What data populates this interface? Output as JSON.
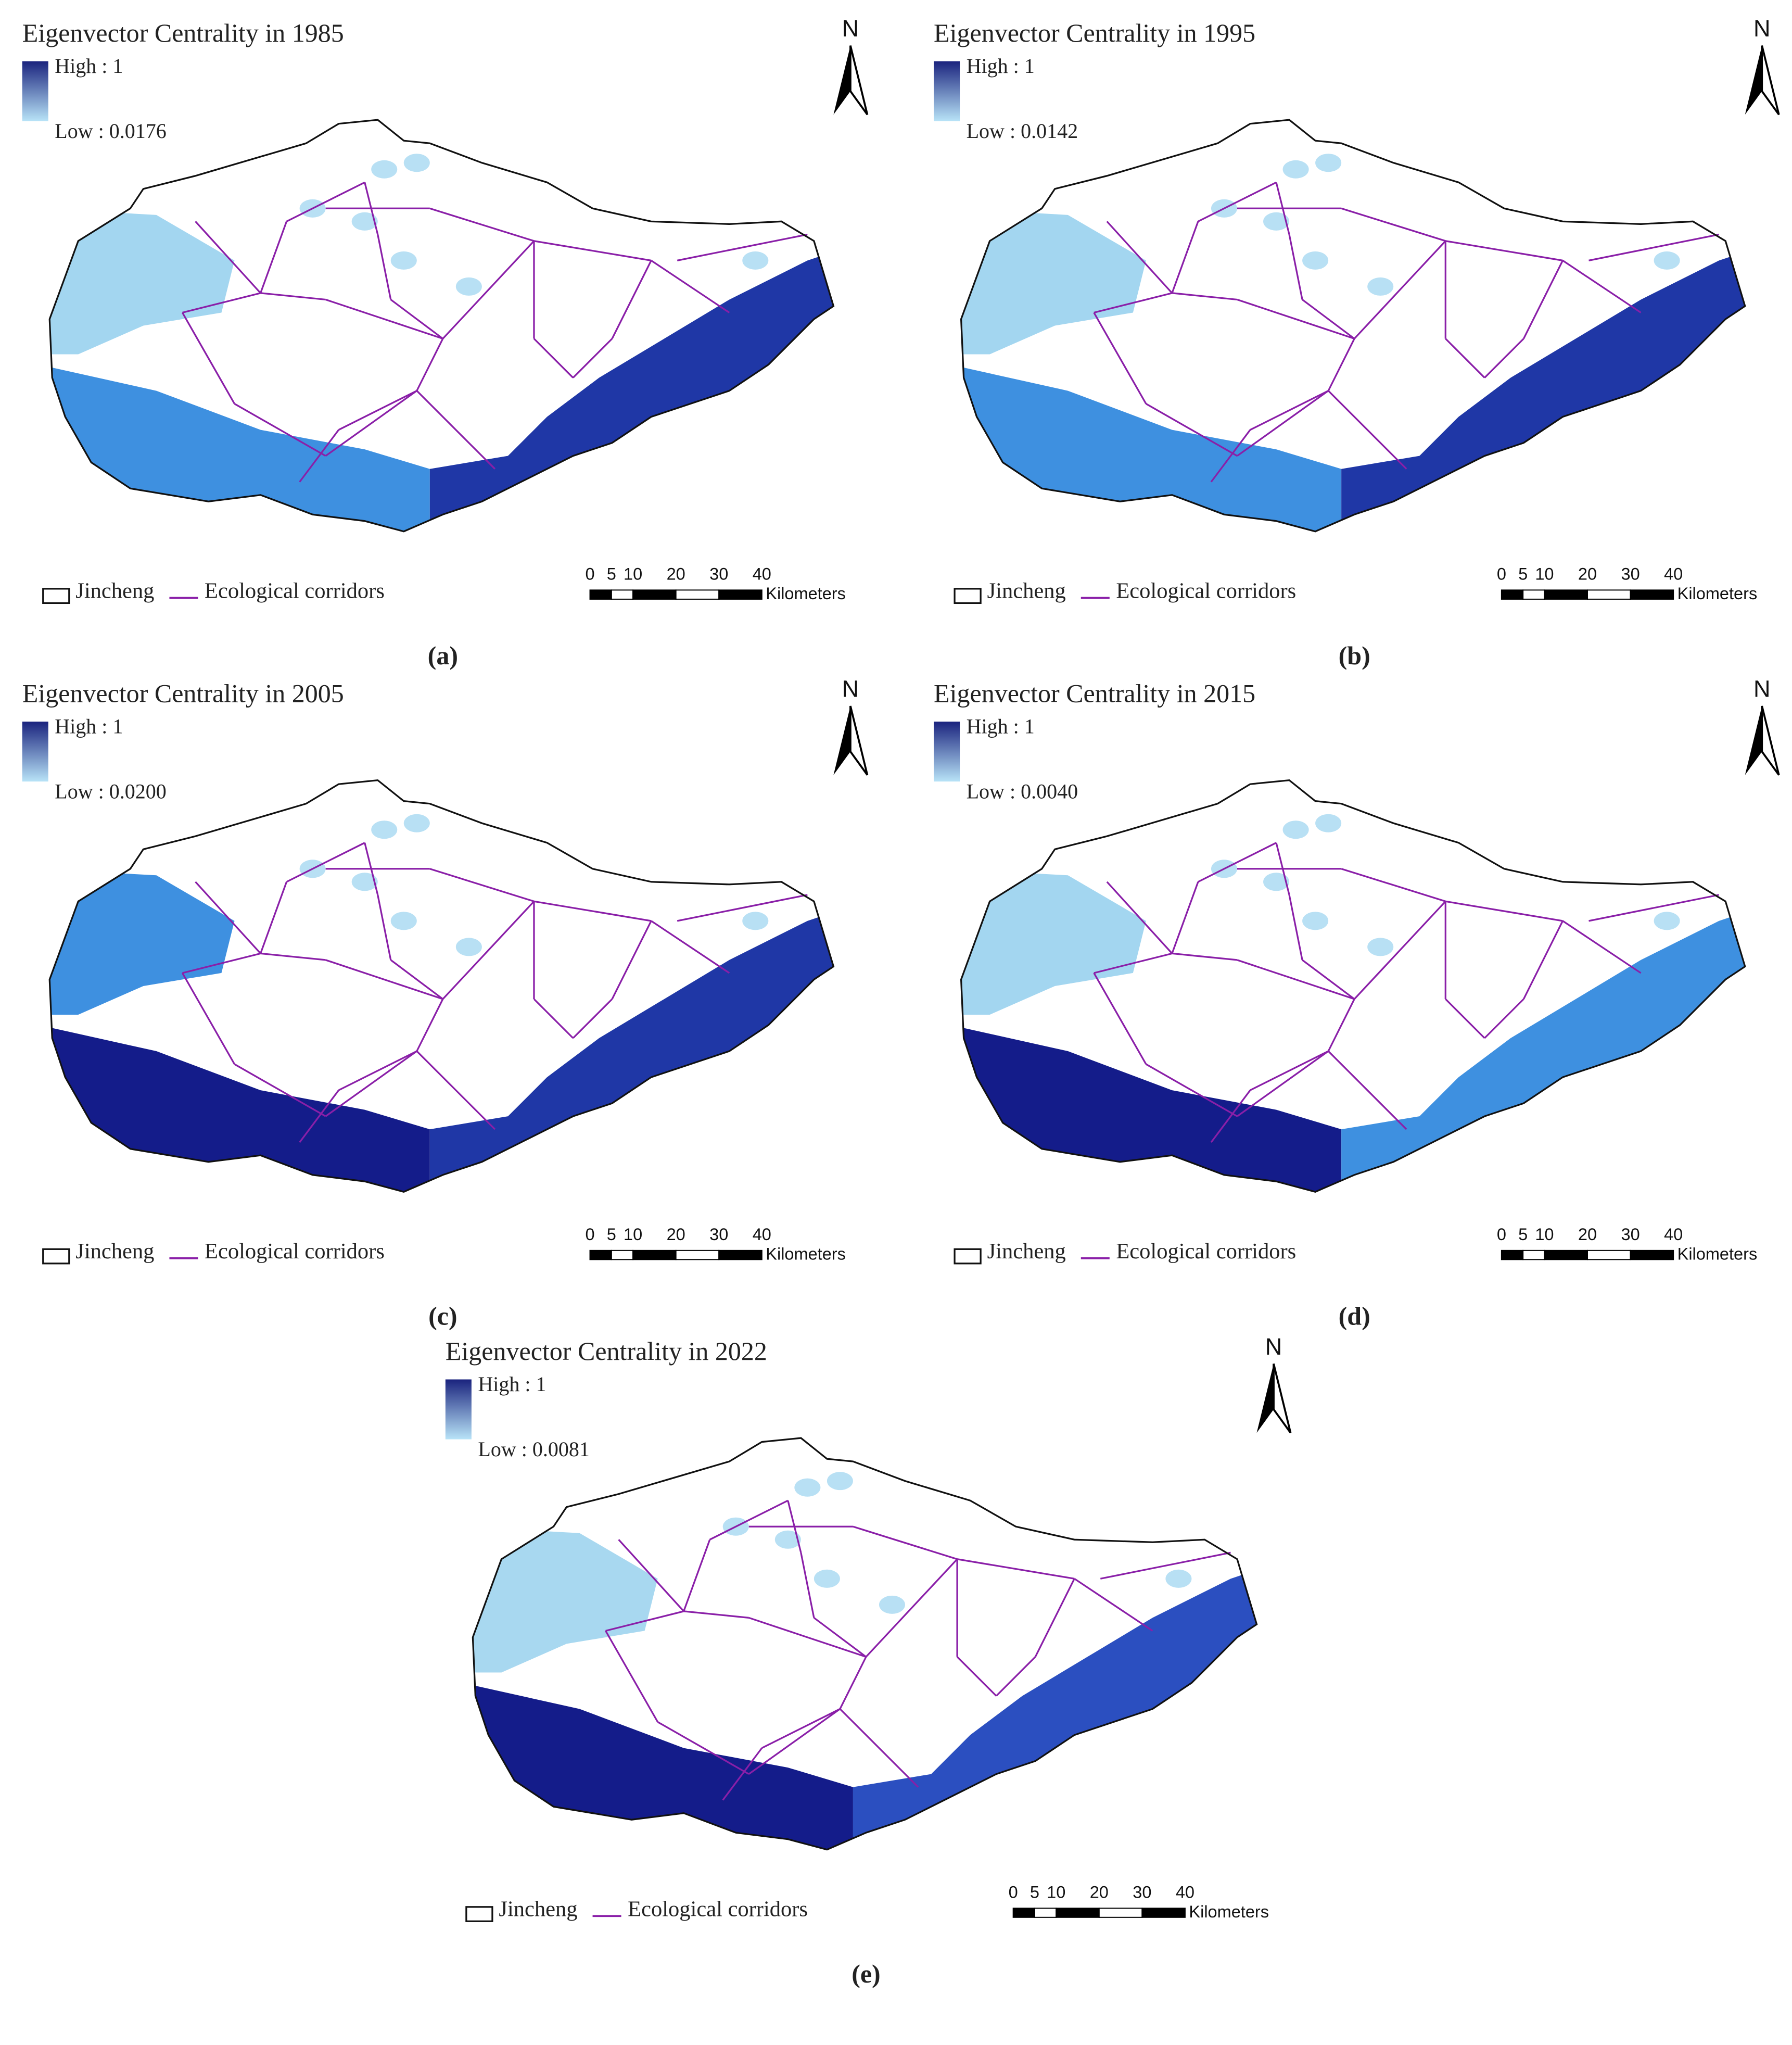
{
  "panels": [
    {
      "title": "Eigenvector Centrality in 1985",
      "legend_high": "High : 1",
      "legend_low": "Low : 0.0176",
      "north": "N",
      "boundary_label": "Jincheng",
      "corridor_label": "Ecological corridors",
      "scale_ticks": [
        0,
        5,
        10,
        20,
        30,
        40
      ],
      "scale_unit": "Kilometers",
      "caption": "(a)",
      "colors": {
        "northwest": "#a3d6f0",
        "southwest": "#3e90e0",
        "southeast": "#1f37a6"
      }
    },
    {
      "title": "Eigenvector Centrality in 1995",
      "legend_high": "High : 1",
      "legend_low": "Low : 0.0142",
      "north": "N",
      "boundary_label": "Jincheng",
      "corridor_label": "Ecological corridors",
      "scale_ticks": [
        0,
        5,
        10,
        20,
        30,
        40
      ],
      "scale_unit": "Kilometers",
      "caption": "(b)",
      "colors": {
        "northwest": "#a3d6f0",
        "southwest": "#3e90e0",
        "southeast": "#1f37a6"
      }
    },
    {
      "title": "Eigenvector Centrality in 2005",
      "legend_high": "High : 1",
      "legend_low": "Low : 0.0200",
      "north": "N",
      "boundary_label": "Jincheng",
      "corridor_label": "Ecological corridors",
      "scale_ticks": [
        0,
        5,
        10,
        20,
        30,
        40
      ],
      "scale_unit": "Kilometers",
      "caption": "(c)",
      "colors": {
        "northwest": "#3e90e0",
        "southwest": "#141c8a",
        "southeast": "#1f37a6"
      }
    },
    {
      "title": "Eigenvector Centrality in 2015",
      "legend_high": "High : 1",
      "legend_low": "Low : 0.0040",
      "north": "N",
      "boundary_label": "Jincheng",
      "corridor_label": "Ecological corridors",
      "scale_ticks": [
        0,
        5,
        10,
        20,
        30,
        40
      ],
      "scale_unit": "Kilometers",
      "caption": "(d)",
      "colors": {
        "northwest": "#a3d6f0",
        "southwest": "#141c8a",
        "southeast": "#3e90e0"
      }
    },
    {
      "title": "Eigenvector Centrality in 2022",
      "legend_high": "High : 1",
      "legend_low": "Low : 0.0081",
      "north": "N",
      "boundary_label": "Jincheng",
      "corridor_label": "Ecological corridors",
      "scale_ticks": [
        0,
        5,
        10,
        20,
        30,
        40
      ],
      "scale_unit": "Kilometers",
      "caption": "(e)",
      "colors": {
        "northwest": "#a8d8f0",
        "southwest": "#141c8a",
        "southeast": "#2b4fc0"
      }
    }
  ]
}
